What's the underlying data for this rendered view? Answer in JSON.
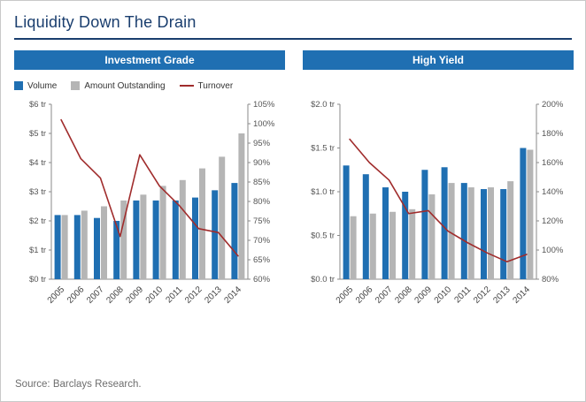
{
  "page": {
    "title": "Liquidity Down The Drain",
    "source": "Source: Barclays Research."
  },
  "colors": {
    "title_navy": "#1a3e6e",
    "header_blue": "#1f6fb2",
    "volume_blue": "#1f6fb2",
    "outstanding_gray": "#b5b5b5",
    "turnover_red": "#a02c2c"
  },
  "legend": {
    "items": [
      {
        "label": "Volume",
        "color": "#1f6fb2"
      },
      {
        "label": "Amount Outstanding",
        "color": "#b5b5b5"
      },
      {
        "label": "Turnover",
        "color": "#a02c2c"
      }
    ]
  },
  "chart_data": [
    {
      "type": "bar+line",
      "title": "Investment Grade",
      "categories": [
        "2005",
        "2006",
        "2007",
        "2008",
        "2009",
        "2010",
        "2011",
        "2012",
        "2013",
        "2014"
      ],
      "left_axis": {
        "min": 0,
        "max": 6,
        "step": 1,
        "labels": [
          "$0 tr",
          "$1 tr",
          "$2 tr",
          "$3 tr",
          "$4 tr",
          "$5 tr",
          "$6 tr"
        ]
      },
      "right_axis": {
        "min": 60,
        "max": 105,
        "step": 5,
        "labels": [
          "60%",
          "65%",
          "70%",
          "75%",
          "80%",
          "85%",
          "90%",
          "95%",
          "100%",
          "105%"
        ]
      },
      "series": [
        {
          "name": "Volume",
          "type": "bar",
          "axis": "left",
          "color": "#1f6fb2",
          "values": [
            2.2,
            2.2,
            2.1,
            2.0,
            2.7,
            2.7,
            2.7,
            2.8,
            3.05,
            3.3
          ]
        },
        {
          "name": "Amount Outstanding",
          "type": "bar",
          "axis": "left",
          "color": "#b5b5b5",
          "values": [
            2.2,
            2.35,
            2.5,
            2.7,
            2.9,
            3.2,
            3.4,
            3.8,
            4.2,
            5.0
          ]
        },
        {
          "name": "Turnover",
          "type": "line",
          "axis": "right",
          "color": "#a02c2c",
          "values": [
            101,
            91,
            86,
            71,
            92,
            84,
            79,
            73,
            72,
            66
          ]
        }
      ]
    },
    {
      "type": "bar+line",
      "title": "High Yield",
      "categories": [
        "2005",
        "2006",
        "2007",
        "2008",
        "2009",
        "2010",
        "2011",
        "2012",
        "2013",
        "2014"
      ],
      "left_axis": {
        "min": 0,
        "max": 2,
        "step": 0.5,
        "labels": [
          "$0.0 tr",
          "$0.5 tr",
          "$1.0 tr",
          "$1.5 tr",
          "$2.0 tr"
        ]
      },
      "right_axis": {
        "min": 80,
        "max": 200,
        "step": 20,
        "labels": [
          "80%",
          "100%",
          "120%",
          "140%",
          "160%",
          "180%",
          "200%"
        ]
      },
      "series": [
        {
          "name": "Volume",
          "type": "bar",
          "axis": "left",
          "color": "#1f6fb2",
          "values": [
            1.3,
            1.2,
            1.05,
            1.0,
            1.25,
            1.28,
            1.1,
            1.03,
            1.03,
            1.5
          ]
        },
        {
          "name": "Amount Outstanding",
          "type": "bar",
          "axis": "left",
          "color": "#b5b5b5",
          "values": [
            0.72,
            0.75,
            0.77,
            0.8,
            0.97,
            1.1,
            1.05,
            1.05,
            1.12,
            1.48
          ]
        },
        {
          "name": "Turnover",
          "type": "line",
          "axis": "right",
          "color": "#a02c2c",
          "values": [
            176,
            160,
            148,
            125,
            127,
            113,
            105,
            98,
            92,
            97
          ]
        }
      ]
    }
  ]
}
